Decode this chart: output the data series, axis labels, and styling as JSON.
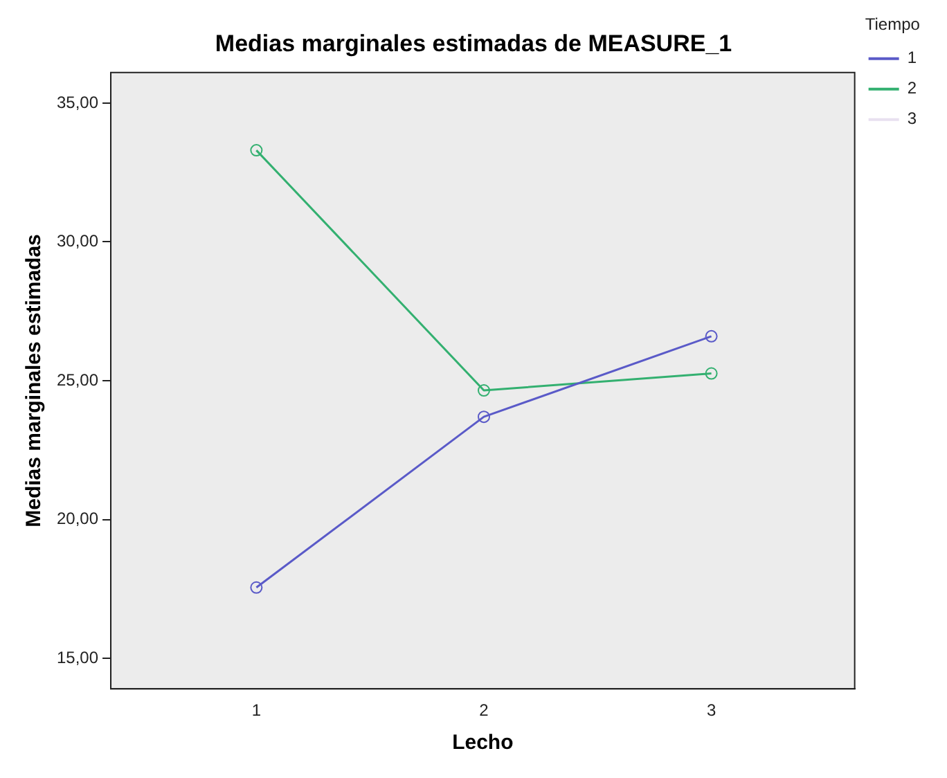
{
  "chart_data": {
    "type": "line",
    "title": "Medias marginales estimadas de MEASURE_1",
    "xlabel": "Lecho",
    "ylabel": "Medias marginales estimadas",
    "legend_title": "Tiempo",
    "x": [
      1,
      2,
      3
    ],
    "series": [
      {
        "name": "1",
        "color": "#5a5ac8",
        "values": [
          17.55,
          23.7,
          26.6
        ]
      },
      {
        "name": "2",
        "color": "#33b070",
        "values": [
          33.3,
          24.65,
          25.26
        ]
      },
      {
        "name": "3",
        "color": "#e8e0f0",
        "values": [
          null,
          null,
          null
        ]
      }
    ],
    "xlim": [
      0.36,
      3.63
    ],
    "xticks": [
      1,
      2,
      3
    ],
    "ylim": [
      13.9,
      36.1
    ],
    "yticks": [
      {
        "value": 15,
        "label": "15,00"
      },
      {
        "value": 20,
        "label": "20,00"
      },
      {
        "value": 25,
        "label": "25,00"
      },
      {
        "value": 30,
        "label": "30,00"
      },
      {
        "value": 35,
        "label": "35,00"
      }
    ],
    "grid": false,
    "legend": "top right",
    "marker": "circle",
    "line_style": "solid"
  }
}
